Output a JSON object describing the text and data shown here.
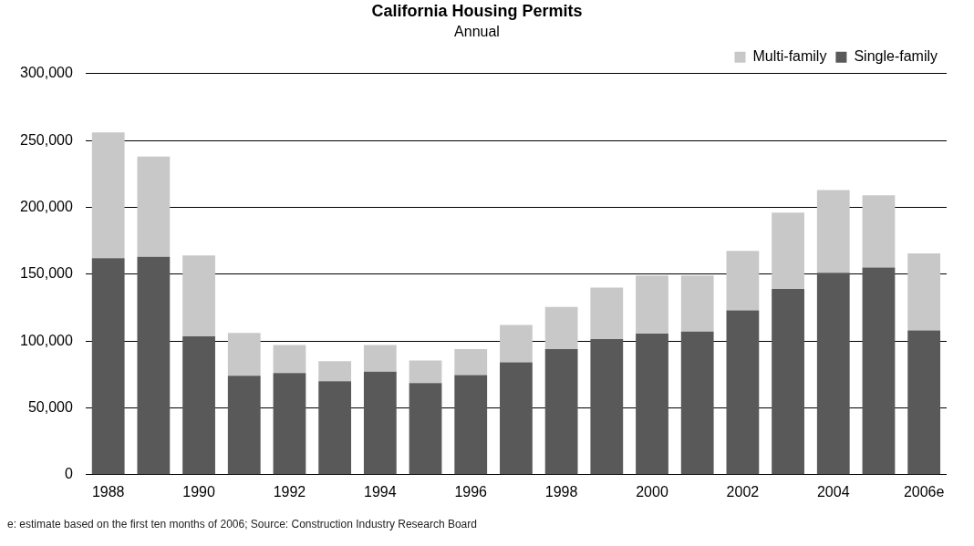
{
  "chart_data": {
    "type": "bar",
    "title": "California Housing Permits",
    "subtitle": "Annual",
    "stacked": true,
    "categories": [
      "1988",
      null,
      "1990",
      null,
      "1992",
      null,
      "1994",
      null,
      "1996",
      null,
      "1998",
      null,
      "2000",
      null,
      "2002",
      null,
      "2004",
      null,
      "2006e"
    ],
    "series": [
      {
        "name": "Single-family",
        "color": "#595959",
        "values": [
          162000,
          163000,
          103500,
          74000,
          76000,
          70000,
          77000,
          68500,
          74500,
          84000,
          94000,
          101500,
          105500,
          107000,
          123000,
          139000,
          151000,
          155000,
          108000
        ]
      },
      {
        "name": "Multi-family",
        "color": "#c8c8c8",
        "values": [
          94000,
          75000,
          60500,
          32000,
          21000,
          15000,
          20000,
          17000,
          19500,
          28000,
          31500,
          38500,
          43500,
          42000,
          44500,
          57000,
          62000,
          54000,
          57500
        ]
      }
    ],
    "ylim": [
      0,
      300000
    ],
    "yticks": [
      {
        "value": 0,
        "label": "0"
      },
      {
        "value": 50000,
        "label": "50,000"
      },
      {
        "value": 100000,
        "label": "100,000"
      },
      {
        "value": 150000,
        "label": "150,000"
      },
      {
        "value": 200000,
        "label": "200,000"
      },
      {
        "value": 250000,
        "label": "250,000"
      },
      {
        "value": 300000,
        "label": "300,000"
      }
    ],
    "grid": "y",
    "legend": "top right",
    "annotations": [
      "e: estimate based on the first ten months of 2006;  Source: Construction Industry Research Board"
    ]
  }
}
